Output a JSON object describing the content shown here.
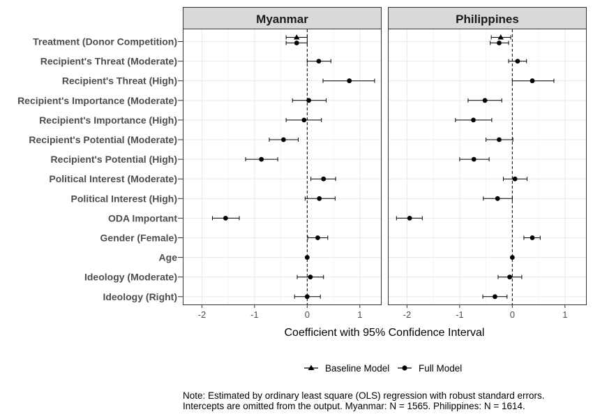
{
  "chart_data": {
    "type": "scatter",
    "subtype": "coefficient-plot",
    "xlabel": "Coefficient with 95% Confidence Interval",
    "xlim": [
      -2.35,
      1.4
    ],
    "xticks": [
      -2,
      -1,
      0,
      1
    ],
    "reference_line_x": 0,
    "grid": true,
    "legend_position": "bottom",
    "note_lines": [
      "Note: Estimated by ordinary least square (OLS) regression with robust standard errors.",
      "Intercepts are omitted from the output. Myanmar: N = 1565. Philippines: N = 1614."
    ],
    "categories": [
      "Treatment (Donor Competition)",
      "Recipient's Threat (Moderate)",
      "Recipient's Threat (High)",
      "Recipient's Importance (Moderate)",
      "Recipient's Importance (High)",
      "Recipient's Potential (Moderate)",
      "Recipient's Potential (High)",
      "Political Interest (Moderate)",
      "Political Interest (High)",
      "ODA Important",
      "Gender (Female)",
      "Age",
      "Ideology (Moderate)",
      "Ideology (Right)"
    ],
    "series_styles": [
      {
        "name": "Baseline Model",
        "marker": "triangle"
      },
      {
        "name": "Full Model",
        "marker": "circle"
      }
    ],
    "panels": [
      {
        "title": "Myanmar",
        "baseline": {
          "category": "Treatment (Donor Competition)",
          "estimate": -0.2,
          "ci": [
            -0.4,
            0.0
          ]
        },
        "full": [
          {
            "estimate": -0.2,
            "ci": [
              -0.4,
              0.0
            ]
          },
          {
            "estimate": 0.22,
            "ci": [
              0.0,
              0.45
            ]
          },
          {
            "estimate": 0.8,
            "ci": [
              0.3,
              1.28
            ]
          },
          {
            "estimate": 0.03,
            "ci": [
              -0.28,
              0.36
            ]
          },
          {
            "estimate": -0.06,
            "ci": [
              -0.4,
              0.27
            ]
          },
          {
            "estimate": -0.45,
            "ci": [
              -0.72,
              -0.17
            ]
          },
          {
            "estimate": -0.87,
            "ci": [
              -1.17,
              -0.56
            ]
          },
          {
            "estimate": 0.31,
            "ci": [
              0.07,
              0.54
            ]
          },
          {
            "estimate": 0.23,
            "ci": [
              -0.04,
              0.53
            ]
          },
          {
            "estimate": -1.55,
            "ci": [
              -1.8,
              -1.29
            ]
          },
          {
            "estimate": 0.2,
            "ci": [
              0.01,
              0.39
            ]
          },
          {
            "estimate": 0.0,
            "ci": [
              -0.01,
              0.01
            ]
          },
          {
            "estimate": 0.06,
            "ci": [
              -0.19,
              0.31
            ]
          },
          {
            "estimate": 0.0,
            "ci": [
              -0.24,
              0.25
            ]
          }
        ]
      },
      {
        "title": "Philippines",
        "baseline": {
          "category": "Treatment (Donor Competition)",
          "estimate": -0.22,
          "ci": [
            -0.4,
            -0.03
          ]
        },
        "full": [
          {
            "estimate": -0.25,
            "ci": [
              -0.42,
              -0.07
            ]
          },
          {
            "estimate": 0.1,
            "ci": [
              -0.07,
              0.27
            ]
          },
          {
            "estimate": 0.38,
            "ci": [
              0.0,
              0.79
            ]
          },
          {
            "estimate": -0.52,
            "ci": [
              -0.84,
              -0.2
            ]
          },
          {
            "estimate": -0.74,
            "ci": [
              -1.08,
              -0.39
            ]
          },
          {
            "estimate": -0.25,
            "ci": [
              -0.5,
              0.01
            ]
          },
          {
            "estimate": -0.73,
            "ci": [
              -1.0,
              -0.44
            ]
          },
          {
            "estimate": 0.05,
            "ci": [
              -0.17,
              0.28
            ]
          },
          {
            "estimate": -0.28,
            "ci": [
              -0.55,
              0.0
            ]
          },
          {
            "estimate": -1.95,
            "ci": [
              -2.2,
              -1.71
            ]
          },
          {
            "estimate": 0.38,
            "ci": [
              0.22,
              0.53
            ]
          },
          {
            "estimate": 0.0,
            "ci": [
              -0.01,
              0.01
            ]
          },
          {
            "estimate": -0.05,
            "ci": [
              -0.27,
              0.18
            ]
          },
          {
            "estimate": -0.33,
            "ci": [
              -0.56,
              -0.1
            ]
          }
        ]
      }
    ]
  }
}
